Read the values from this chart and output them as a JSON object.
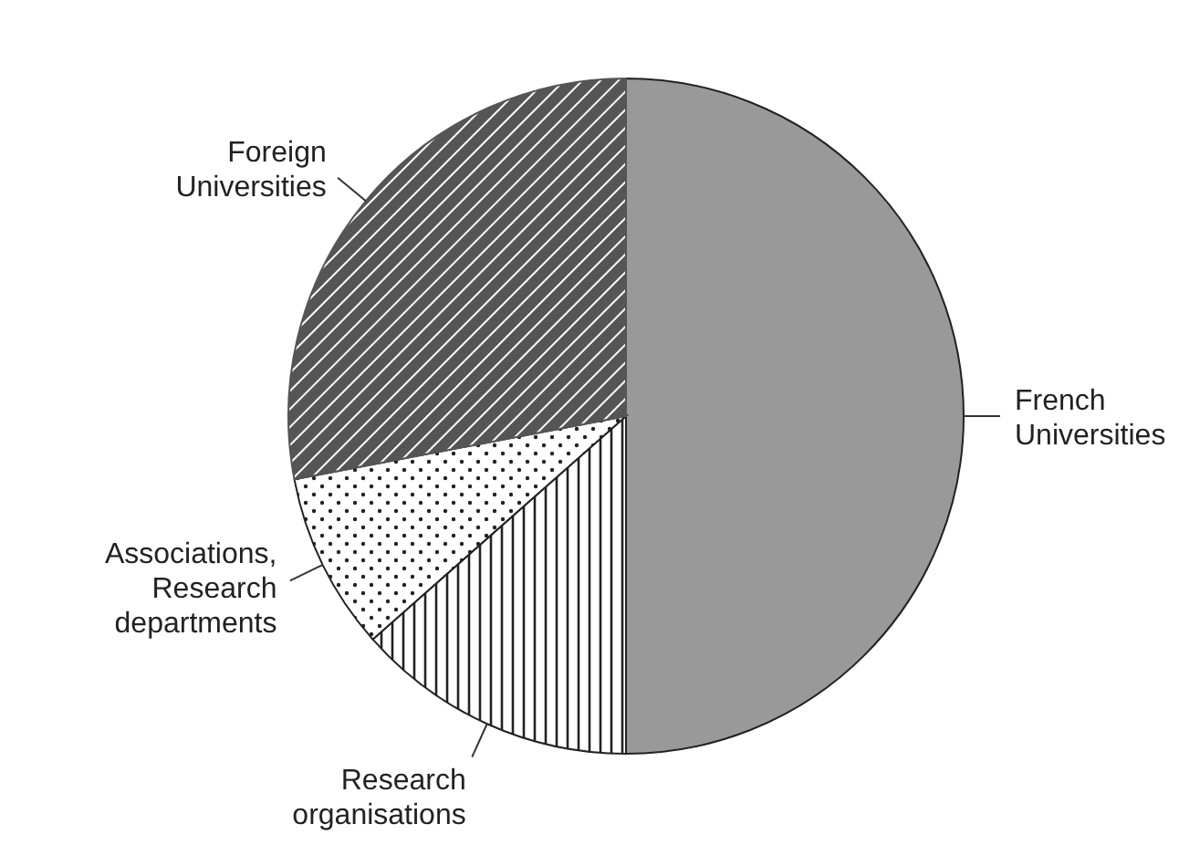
{
  "chart_data": {
    "type": "pie",
    "categories": [
      "French Universities",
      "Research organisations",
      "Associations, Research departments",
      "Foreign Universities"
    ],
    "values": [
      50,
      13.5,
      8.5,
      28
    ],
    "colors": [
      "#999999",
      "#222222",
      "#222222",
      "#555555"
    ]
  }
}
